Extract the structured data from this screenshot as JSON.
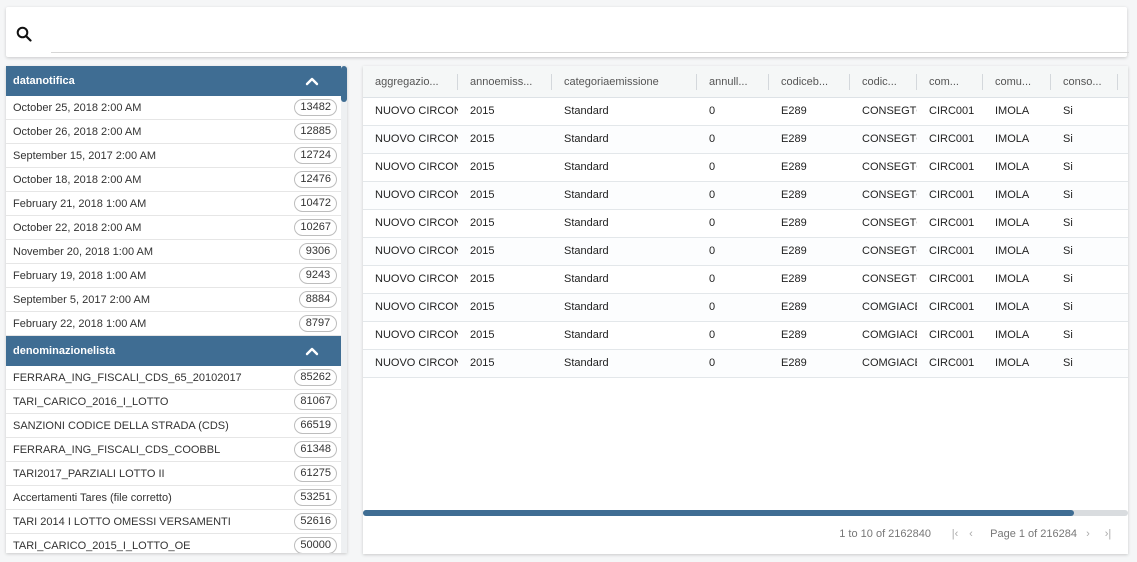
{
  "search": {
    "placeholder": "",
    "value": ""
  },
  "facets": [
    {
      "title": "datanotifica",
      "items": [
        {
          "label": "October 25, 2018 2:00 AM",
          "count": "13482"
        },
        {
          "label": "October 26, 2018 2:00 AM",
          "count": "12885"
        },
        {
          "label": "September 15, 2017 2:00 AM",
          "count": "12724"
        },
        {
          "label": "October 18, 2018 2:00 AM",
          "count": "12476"
        },
        {
          "label": "February 21, 2018 1:00 AM",
          "count": "10472"
        },
        {
          "label": "October 22, 2018 2:00 AM",
          "count": "10267"
        },
        {
          "label": "November 20, 2018 1:00 AM",
          "count": "9306"
        },
        {
          "label": "February 19, 2018 1:00 AM",
          "count": "9243"
        },
        {
          "label": "September 5, 2017 2:00 AM",
          "count": "8884"
        },
        {
          "label": "February 22, 2018 1:00 AM",
          "count": "8797"
        }
      ]
    },
    {
      "title": "denominazionelista",
      "items": [
        {
          "label": "FERRARA_ING_FISCALI_CDS_65_20102017",
          "count": "85262"
        },
        {
          "label": "TARI_CARICO_2016_I_LOTTO",
          "count": "81067"
        },
        {
          "label": "SANZIONI CODICE DELLA STRADA (CDS)",
          "count": "66519"
        },
        {
          "label": "FERRARA_ING_FISCALI_CDS_COOBBL",
          "count": "61348"
        },
        {
          "label": "TARI2017_PARZIALI LOTTO II",
          "count": "61275"
        },
        {
          "label": "Accertamenti Tares (file corretto)",
          "count": "53251"
        },
        {
          "label": "TARI 2014 I LOTTO OMESSI VERSAMENTI",
          "count": "52616"
        },
        {
          "label": "TARI_CARICO_2015_I_LOTTO_OE",
          "count": "50000"
        }
      ]
    }
  ],
  "grid": {
    "columns": [
      "aggregazio...",
      "annoemiss...",
      "categoriaemissione",
      "annull...",
      "codiceb...",
      "codic...",
      "com...",
      "comu...",
      "conso..."
    ],
    "rows": [
      [
        "NUOVO CIRCOND",
        "2015",
        "Standard",
        "0",
        "E289",
        "CONSEGTOT",
        "CIRC001",
        "IMOLA",
        "Si"
      ],
      [
        "NUOVO CIRCOND",
        "2015",
        "Standard",
        "0",
        "E289",
        "CONSEGTOT",
        "CIRC001",
        "IMOLA",
        "Si"
      ],
      [
        "NUOVO CIRCOND",
        "2015",
        "Standard",
        "0",
        "E289",
        "CONSEGTOT",
        "CIRC001",
        "IMOLA",
        "Si"
      ],
      [
        "NUOVO CIRCOND",
        "2015",
        "Standard",
        "0",
        "E289",
        "CONSEGTOT",
        "CIRC001",
        "IMOLA",
        "Si"
      ],
      [
        "NUOVO CIRCOND",
        "2015",
        "Standard",
        "0",
        "E289",
        "CONSEGTOT",
        "CIRC001",
        "IMOLA",
        "Si"
      ],
      [
        "NUOVO CIRCOND",
        "2015",
        "Standard",
        "0",
        "E289",
        "CONSEGTOT",
        "CIRC001",
        "IMOLA",
        "Si"
      ],
      [
        "NUOVO CIRCOND",
        "2015",
        "Standard",
        "0",
        "E289",
        "CONSEGTOT",
        "CIRC001",
        "IMOLA",
        "Si"
      ],
      [
        "NUOVO CIRCOND",
        "2015",
        "Standard",
        "0",
        "E289",
        "COMGIACE",
        "CIRC001",
        "IMOLA",
        "Si"
      ],
      [
        "NUOVO CIRCOND",
        "2015",
        "Standard",
        "0",
        "E289",
        "COMGIACE",
        "CIRC001",
        "IMOLA",
        "Si"
      ],
      [
        "NUOVO CIRCOND",
        "2015",
        "Standard",
        "0",
        "E289",
        "COMGIACE",
        "CIRC001",
        "IMOLA",
        "Si"
      ]
    ],
    "pager": {
      "summary": "1 to 10 of 2162840",
      "page": "Page 1 of 216284"
    }
  },
  "colors": {
    "accent": "#3f6d93",
    "background": "#f5f6f7"
  }
}
